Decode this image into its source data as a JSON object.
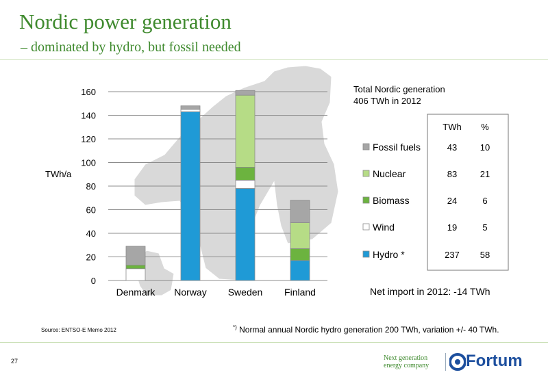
{
  "slide": {
    "title": "Nordic power generation",
    "subtitle": "– dominated by hydro, but fossil needed",
    "total_line1": "Total Nordic generation",
    "total_line2": "406 TWh in 2012",
    "net_import": "Net import in 2012:  -14 TWh",
    "source": "Source: ENTSO-E Memo 2012",
    "footnote_mark": "*)",
    "footnote": " Normal annual Nordic hydro generation 200 TWh, variation +/- 40 TWh.",
    "page_number": "27",
    "tagline_line1": "Next generation",
    "tagline_line2": "energy company",
    "logo_text": "Fortum"
  },
  "colors": {
    "title_green": "#3f8a2e",
    "fossil": "#a6a6a6",
    "nuclear": "#b6dc86",
    "biomass": "#6cb33f",
    "wind": "#ffffff",
    "hydro": "#1f9ad6",
    "map": "#d9d9d9",
    "logo_blue": "#1d4f9e"
  },
  "chart_data": {
    "type": "bar",
    "stacked": true,
    "categories": [
      "Denmark",
      "Norway",
      "Sweden",
      "Finland"
    ],
    "ylabel": "TWh/a",
    "ylim": [
      0,
      160
    ],
    "yticks": [
      "0",
      "20",
      "40",
      "60",
      "80",
      "100",
      "120",
      "140",
      "160"
    ],
    "grid": true,
    "legend_position": "right",
    "series": [
      {
        "name": "Hydro *",
        "color": "#1f9ad6",
        "values": [
          0,
          143,
          78,
          17
        ]
      },
      {
        "name": "Wind",
        "color": "#ffffff",
        "values": [
          10,
          2,
          7,
          0
        ]
      },
      {
        "name": "Biomass",
        "color": "#6cb33f",
        "values": [
          3,
          0,
          11,
          10
        ]
      },
      {
        "name": "Nuclear",
        "color": "#b6dc86",
        "values": [
          0,
          0,
          61,
          22
        ]
      },
      {
        "name": "Fossil fuels",
        "color": "#a6a6a6",
        "values": [
          16,
          3,
          4,
          19
        ]
      }
    ],
    "legend_order": [
      "Fossil fuels",
      "Nuclear",
      "Biomass",
      "Wind",
      "Hydro *"
    ],
    "totals_table": {
      "headers": [
        "TWh",
        "%"
      ],
      "rows": [
        {
          "source": "Fossil fuels",
          "twh": "43",
          "pct": "10"
        },
        {
          "source": "Nuclear",
          "twh": "83",
          "pct": "21"
        },
        {
          "source": "Biomass",
          "twh": "24",
          "pct": "6"
        },
        {
          "source": "Wind",
          "twh": "19",
          "pct": "5"
        },
        {
          "source": "Hydro *",
          "twh": "237",
          "pct": "58"
        }
      ]
    }
  }
}
